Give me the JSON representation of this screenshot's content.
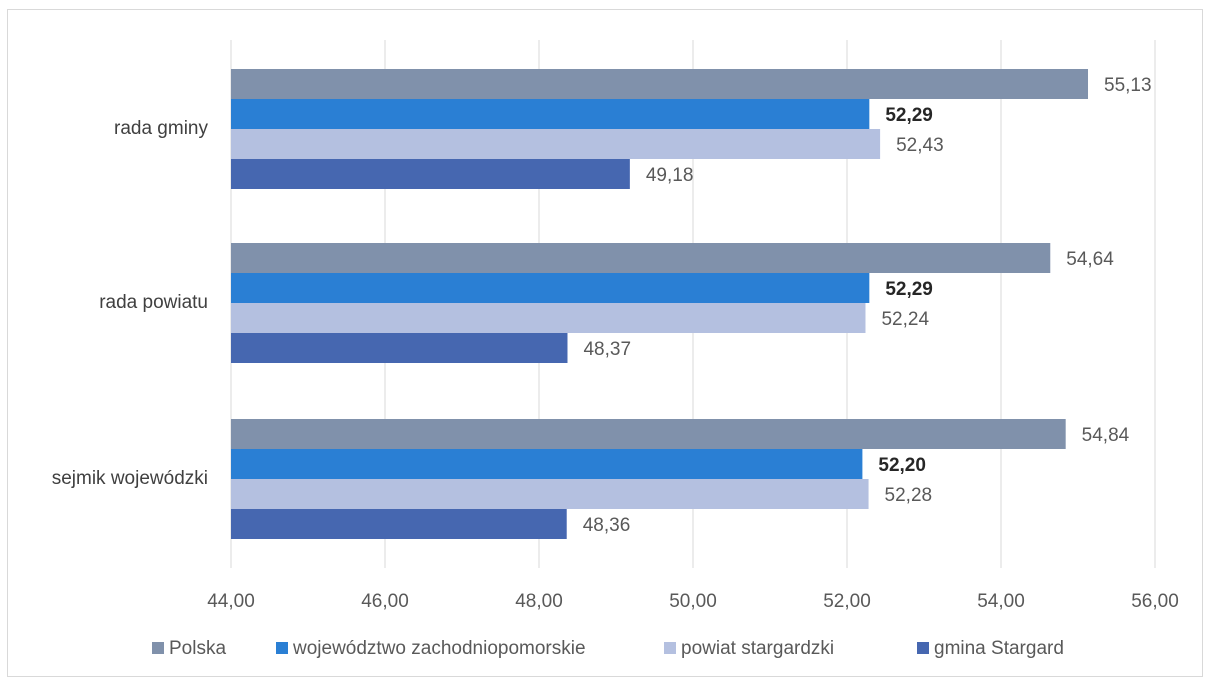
{
  "chart_data": {
    "type": "bar",
    "orientation": "horizontal",
    "title": "",
    "xlabel": "",
    "ylabel": "",
    "xlim": [
      44,
      56
    ],
    "x_ticks": [
      "44,00",
      "46,00",
      "48,00",
      "50,00",
      "52,00",
      "54,00",
      "56,00"
    ],
    "grid": "vertical",
    "legend_position": "bottom",
    "categories": [
      "rada gminy",
      "rada powiatu",
      "sejmik wojewódzki"
    ],
    "series": [
      {
        "name": "Polska",
        "color": "#8091ab",
        "values": [
          55.13,
          54.64,
          54.84
        ],
        "labels": [
          "55,13",
          "54,64",
          "54,84"
        ],
        "bold_labels": false
      },
      {
        "name": "województwo zachodniopomorskie",
        "color": "#2a7fd4",
        "values": [
          52.29,
          52.29,
          52.2
        ],
        "labels": [
          "52,29",
          "52,29",
          "52,20"
        ],
        "bold_labels": true
      },
      {
        "name": "powiat stargardzki",
        "color": "#b4c0e0",
        "values": [
          52.43,
          52.24,
          52.28
        ],
        "labels": [
          "52,43",
          "52,24",
          "52,28"
        ],
        "bold_labels": false
      },
      {
        "name": "gmina Stargard",
        "color": "#4667b0",
        "values": [
          49.18,
          48.37,
          48.36
        ],
        "labels": [
          "49,18",
          "48,37",
          "48,36"
        ],
        "bold_labels": false
      }
    ]
  }
}
